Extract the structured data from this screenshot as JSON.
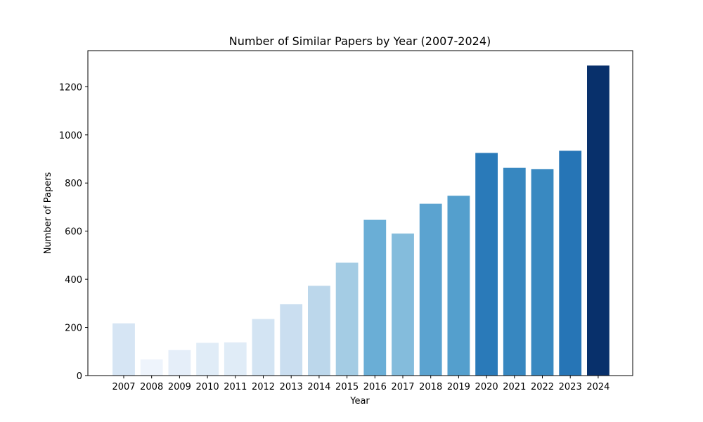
{
  "chart_data": {
    "type": "bar",
    "title": "Number of Similar Papers by Year (2007-2024)",
    "xlabel": "Year",
    "ylabel": "Number of Papers",
    "categories": [
      "2007",
      "2008",
      "2009",
      "2010",
      "2011",
      "2012",
      "2013",
      "2014",
      "2015",
      "2016",
      "2017",
      "2018",
      "2019",
      "2020",
      "2021",
      "2022",
      "2023",
      "2024"
    ],
    "values": [
      217,
      67,
      106,
      136,
      138,
      235,
      297,
      373,
      469,
      647,
      590,
      714,
      747,
      925,
      863,
      858,
      934,
      1288
    ],
    "colors": [
      "#d6e5f4",
      "#eef4fc",
      "#e5eef9",
      "#e0ecf7",
      "#e0ecf7",
      "#d3e4f3",
      "#cadef0",
      "#bcd7eb",
      "#a4cce4",
      "#6aaed6",
      "#84bcdc",
      "#5ba3d0",
      "#549fcd",
      "#2a7ab9",
      "#3787c0",
      "#3989c1",
      "#2675b6",
      "#08306b"
    ],
    "yticks": [
      0,
      200,
      400,
      600,
      800,
      1000,
      1200
    ],
    "ylim": [
      0,
      1350
    ],
    "grid": false,
    "legend": "none"
  }
}
